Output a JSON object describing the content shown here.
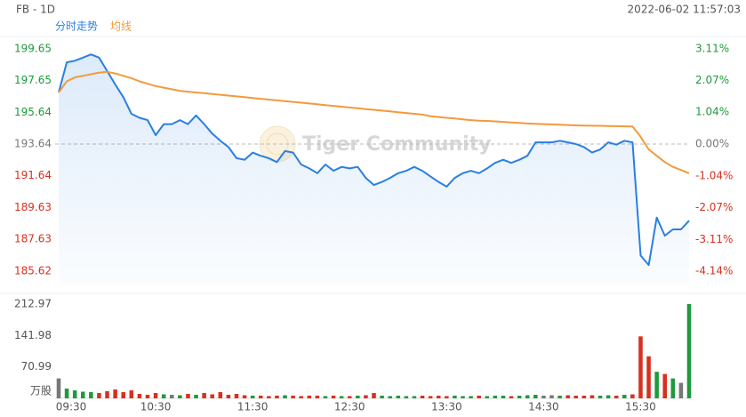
{
  "chart_data": {
    "type": "line",
    "title": "FB - 1D",
    "timestamp": "2022-06-02 11:57:03",
    "watermark": "Tiger Community",
    "categories": [
      "09:30",
      "09:35",
      "09:40",
      "09:45",
      "09:50",
      "09:55",
      "10:00",
      "10:05",
      "10:10",
      "10:15",
      "10:20",
      "10:25",
      "10:30",
      "10:35",
      "10:40",
      "10:45",
      "10:50",
      "10:55",
      "11:00",
      "11:05",
      "11:10",
      "11:15",
      "11:20",
      "11:25",
      "11:30",
      "11:35",
      "11:40",
      "11:45",
      "11:50",
      "11:55",
      "12:00",
      "12:05",
      "12:10",
      "12:15",
      "12:20",
      "12:25",
      "12:30",
      "12:35",
      "12:40",
      "12:45",
      "12:50",
      "12:55",
      "13:00",
      "13:05",
      "13:10",
      "13:15",
      "13:20",
      "13:25",
      "13:30",
      "13:35",
      "13:40",
      "13:45",
      "13:50",
      "13:55",
      "14:00",
      "14:05",
      "14:10",
      "14:15",
      "14:20",
      "14:25",
      "14:30",
      "14:35",
      "14:40",
      "14:45",
      "14:50",
      "14:55",
      "15:00",
      "15:05",
      "15:10",
      "15:15",
      "15:20",
      "15:25",
      "15:30",
      "15:35",
      "15:40",
      "15:45",
      "15:50",
      "15:55",
      "16:00"
    ],
    "xticks": [
      "09:30",
      "10:30",
      "11:30",
      "12:30",
      "13:30",
      "14:30",
      "15:30"
    ],
    "series": [
      {
        "name": "分时走势",
        "color": "#2a7fe0",
        "values": [
          196.9,
          198.8,
          198.9,
          199.1,
          199.3,
          199.1,
          198.25,
          197.4,
          196.6,
          195.55,
          195.3,
          195.15,
          194.2,
          194.9,
          194.9,
          195.15,
          194.9,
          195.45,
          194.9,
          194.3,
          193.85,
          193.45,
          192.75,
          192.65,
          193.1,
          192.9,
          192.75,
          192.5,
          193.2,
          193.1,
          192.35,
          192.1,
          191.8,
          192.35,
          191.95,
          192.2,
          192.1,
          192.2,
          191.5,
          191.05,
          191.25,
          191.5,
          191.8,
          191.95,
          192.2,
          191.95,
          191.6,
          191.25,
          190.95,
          191.5,
          191.8,
          191.95,
          191.8,
          192.1,
          192.45,
          192.65,
          192.45,
          192.65,
          192.9,
          193.75,
          193.75,
          193.75,
          193.85,
          193.75,
          193.64,
          193.45,
          193.1,
          193.3,
          193.75,
          193.6,
          193.85,
          193.75,
          186.6,
          186.0,
          189.0,
          187.85,
          188.25,
          188.25,
          188.8
        ]
      },
      {
        "name": "均线",
        "color": "#f39a3c",
        "values": [
          196.9,
          197.6,
          197.85,
          197.95,
          198.05,
          198.15,
          198.2,
          198.1,
          197.95,
          197.8,
          197.6,
          197.45,
          197.3,
          197.2,
          197.1,
          197.0,
          196.95,
          196.9,
          196.85,
          196.8,
          196.75,
          196.7,
          196.65,
          196.6,
          196.55,
          196.5,
          196.45,
          196.4,
          196.35,
          196.3,
          196.25,
          196.2,
          196.15,
          196.1,
          196.05,
          196.0,
          195.95,
          195.9,
          195.85,
          195.8,
          195.75,
          195.7,
          195.65,
          195.6,
          195.55,
          195.5,
          195.4,
          195.35,
          195.3,
          195.25,
          195.2,
          195.15,
          195.12,
          195.1,
          195.07,
          195.04,
          195.0,
          194.97,
          194.94,
          194.92,
          194.9,
          194.88,
          194.86,
          194.84,
          194.82,
          194.81,
          194.8,
          194.79,
          194.78,
          194.77,
          194.76,
          194.75,
          194.1,
          193.3,
          192.9,
          192.5,
          192.2,
          192.0,
          191.8
        ]
      }
    ],
    "ylim": [
      184.77,
      200.21
    ],
    "yticks": [
      199.65,
      197.65,
      195.64,
      193.64,
      191.64,
      189.63,
      187.63,
      185.62
    ],
    "y2lim": [
      -4.581,
      3.393
    ],
    "y2ticks": [
      {
        "value": 3.11,
        "label": "3.11%"
      },
      {
        "value": 2.07,
        "label": "2.07%"
      },
      {
        "value": 1.04,
        "label": "1.04%"
      },
      {
        "value": 0,
        "label": "0.00%"
      },
      {
        "value": -1.04,
        "label": "-1.04%"
      },
      {
        "value": -2.07,
        "label": "-2.07%"
      },
      {
        "value": -3.11,
        "label": "-3.11%"
      },
      {
        "value": -4.14,
        "label": "-4.14%"
      }
    ],
    "zero_line": true,
    "colors": {
      "up": "#1e9a3c",
      "down": "#d8301e",
      "flat": "#777777"
    },
    "volume": {
      "unit": "万股",
      "values": [
        45,
        22,
        18,
        15,
        14,
        12,
        16,
        20,
        14,
        18,
        10,
        8,
        12,
        9,
        8,
        7,
        10,
        8,
        12,
        9,
        14,
        8,
        10,
        7,
        6,
        6,
        5,
        6,
        7,
        6,
        5,
        6,
        6,
        5,
        6,
        5,
        5,
        6,
        7,
        12,
        6,
        5,
        6,
        5,
        5,
        6,
        5,
        6,
        5,
        6,
        5,
        5,
        6,
        5,
        6,
        6,
        5,
        6,
        7,
        8,
        6,
        7,
        6,
        7,
        6,
        6,
        7,
        6,
        7,
        6,
        8,
        9,
        140,
        95,
        60,
        55,
        45,
        35,
        212.97
      ],
      "ylim": [
        0,
        212.97
      ],
      "yticks": [
        212.97,
        141.98,
        70.99
      ]
    }
  }
}
